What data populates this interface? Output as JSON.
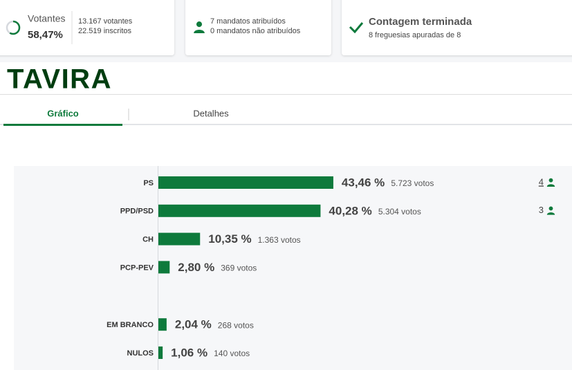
{
  "cards": [
    {
      "label": "Votantes",
      "value": "58,47%",
      "turnout": 58.47,
      "lines": [
        "13.167 votantes",
        "22.519 inscritos"
      ]
    },
    {
      "lines": [
        "7 mandatos atribuídos",
        "0 mandatos não atribuídos"
      ]
    },
    {
      "title": "Contagem terminada",
      "subtitle": "8 freguesias apuradas de 8"
    }
  ],
  "municipality": "TAVIRA",
  "tabs": [
    "Gráfico",
    "Detalhes"
  ],
  "chart_data": {
    "type": "bar",
    "orientation": "horizontal",
    "categories": [
      "PS",
      "PPD/PSD",
      "CH",
      "PCP-PEV",
      "EM BRANCO",
      "NULOS"
    ],
    "values": [
      43.46,
      40.28,
      10.35,
      2.8,
      2.04,
      1.06
    ],
    "value_labels": [
      "43,46 %",
      "40,28 %",
      "10,35 %",
      "2,80 %",
      "2,04 %",
      "1,06 %"
    ],
    "votes": [
      "5.723 votos",
      "5.304 votos",
      "1.363 votos",
      "369 votos",
      "268 votos",
      "140 votos"
    ],
    "seats": [
      "4",
      "3"
    ],
    "color": "#0e7a3c"
  }
}
